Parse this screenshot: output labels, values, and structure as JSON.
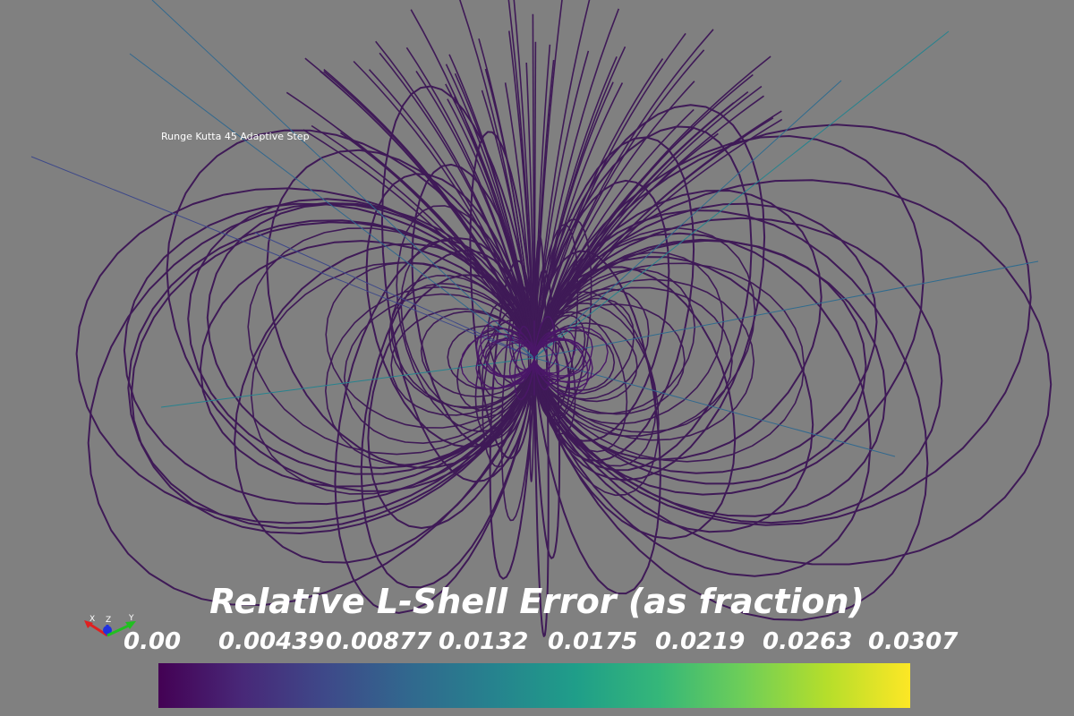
{
  "caption": "Runge Kutta 45 Adaptive Step",
  "legend": {
    "title": "Relative L-Shell Error (as fraction)",
    "ticks": [
      "0.00",
      "0.00439",
      "0.00877",
      "0.0132",
      "0.0175",
      "0.0219",
      "0.0263",
      "0.0307"
    ],
    "range": [
      0.0,
      0.0307
    ],
    "colormap": "viridis",
    "colors": [
      "#440154",
      "#482878",
      "#3e4989",
      "#31688e",
      "#26828e",
      "#1f9e89",
      "#35b779",
      "#6ece58",
      "#b5de2b",
      "#fde725"
    ]
  },
  "axes_labels": {
    "x": "X",
    "y": "Y",
    "z": "Z"
  },
  "line_color": "#3f1a57",
  "background": "#808080"
}
